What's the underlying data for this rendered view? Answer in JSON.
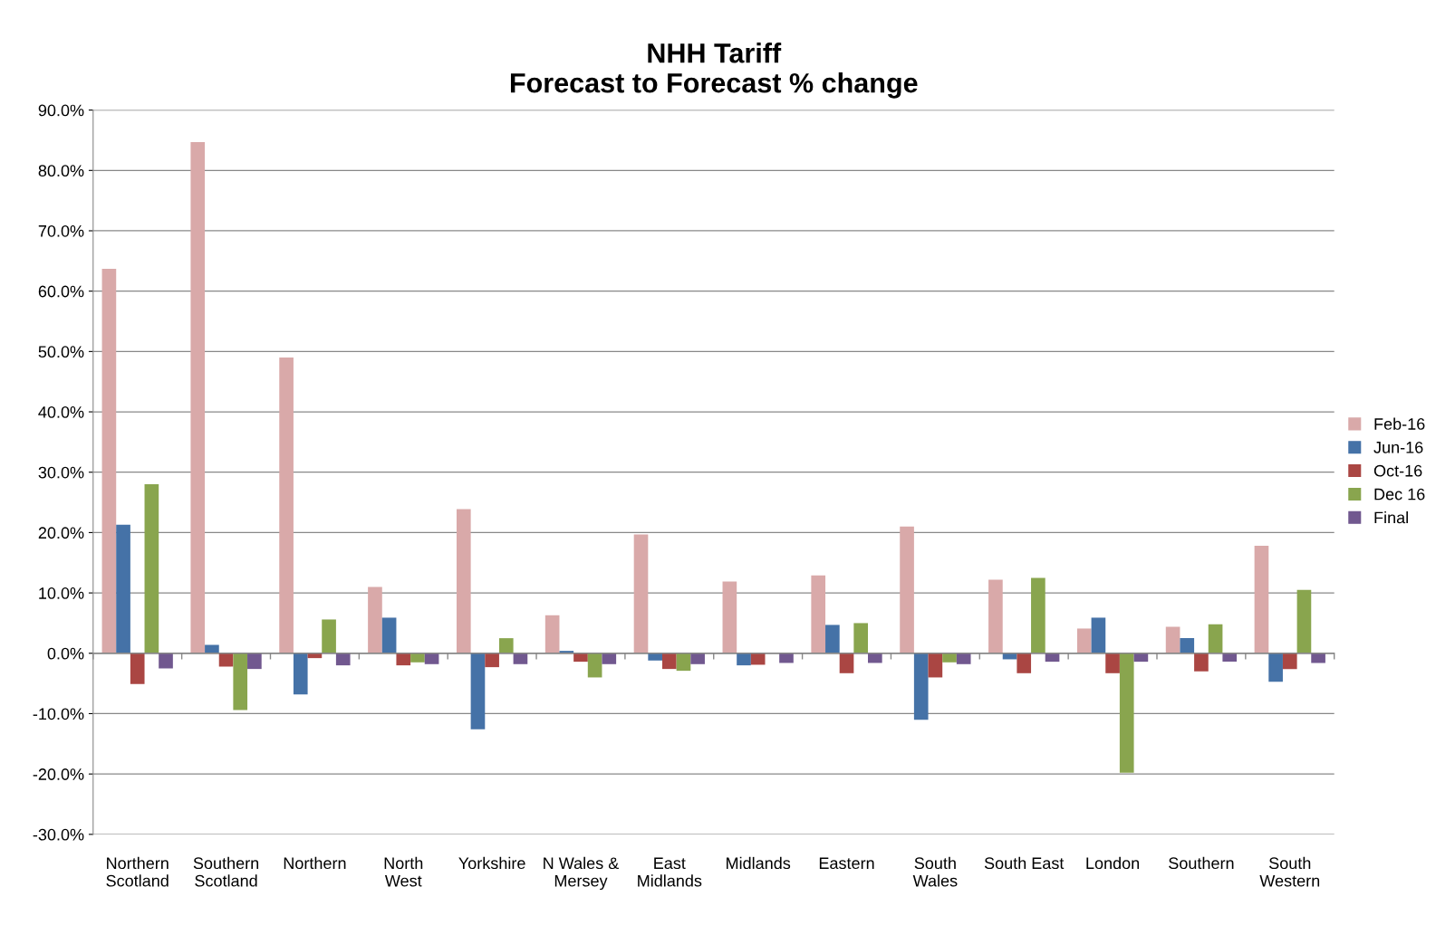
{
  "chart_data": {
    "type": "bar",
    "title": "NHH Tariff\nForecast to Forecast % change",
    "categories": [
      "Northern\nScotland",
      "Southern\nScotland",
      "Northern",
      "North\nWest",
      "Yorkshire",
      "N Wales &\nMersey",
      "East\nMidlands",
      "Midlands",
      "Eastern",
      "South\nWales",
      "South East",
      "London",
      "Southern",
      "South\nWestern"
    ],
    "series": [
      {
        "name": "Feb-16",
        "color": "#d9a9a9",
        "values": [
          63.7,
          84.7,
          49.0,
          11.0,
          23.9,
          6.3,
          19.7,
          11.9,
          12.9,
          21.0,
          12.2,
          4.1,
          4.4,
          17.8
        ]
      },
      {
        "name": "Jun-16",
        "color": "#4572a7",
        "values": [
          21.3,
          1.4,
          -6.8,
          5.9,
          -12.6,
          0.4,
          -1.2,
          -2.0,
          4.7,
          -11.0,
          -1.0,
          5.9,
          2.5,
          -4.7
        ]
      },
      {
        "name": "Oct-16",
        "color": "#aa4643",
        "values": [
          -5.1,
          -2.2,
          -0.8,
          -2.0,
          -2.3,
          -1.4,
          -2.6,
          -1.9,
          -3.3,
          -4.0,
          -3.3,
          -3.3,
          -3.0,
          -2.6
        ]
      },
      {
        "name": "Dec 16",
        "color": "#89a54e",
        "values": [
          28.0,
          -9.4,
          5.6,
          -1.5,
          2.5,
          -4.0,
          -2.9,
          0.0,
          5.0,
          -1.5,
          12.5,
          -19.8,
          4.8,
          10.5
        ]
      },
      {
        "name": "Final",
        "color": "#71588f",
        "values": [
          -2.5,
          -2.6,
          -2.0,
          -1.8,
          -1.8,
          -1.8,
          -1.8,
          -1.6,
          -1.6,
          -1.8,
          -1.4,
          -1.4,
          -1.4,
          -1.6
        ]
      }
    ],
    "ylim": [
      -30,
      90
    ],
    "yticks": [
      {
        "value": -30,
        "label": "-30.0%"
      },
      {
        "value": -20,
        "label": "-20.0%"
      },
      {
        "value": -10,
        "label": "-10.0%"
      },
      {
        "value": 0,
        "label": "0.0%"
      },
      {
        "value": 10,
        "label": "10.0%"
      },
      {
        "value": 20,
        "label": "20.0%"
      },
      {
        "value": 30,
        "label": "30.0%"
      },
      {
        "value": 40,
        "label": "40.0%"
      },
      {
        "value": 50,
        "label": "50.0%"
      },
      {
        "value": 60,
        "label": "60.0%"
      },
      {
        "value": 70,
        "label": "70.0%"
      },
      {
        "value": 80,
        "label": "80.0%"
      },
      {
        "value": 90,
        "label": "90.0%"
      }
    ],
    "grid": "y",
    "legend": "right"
  }
}
